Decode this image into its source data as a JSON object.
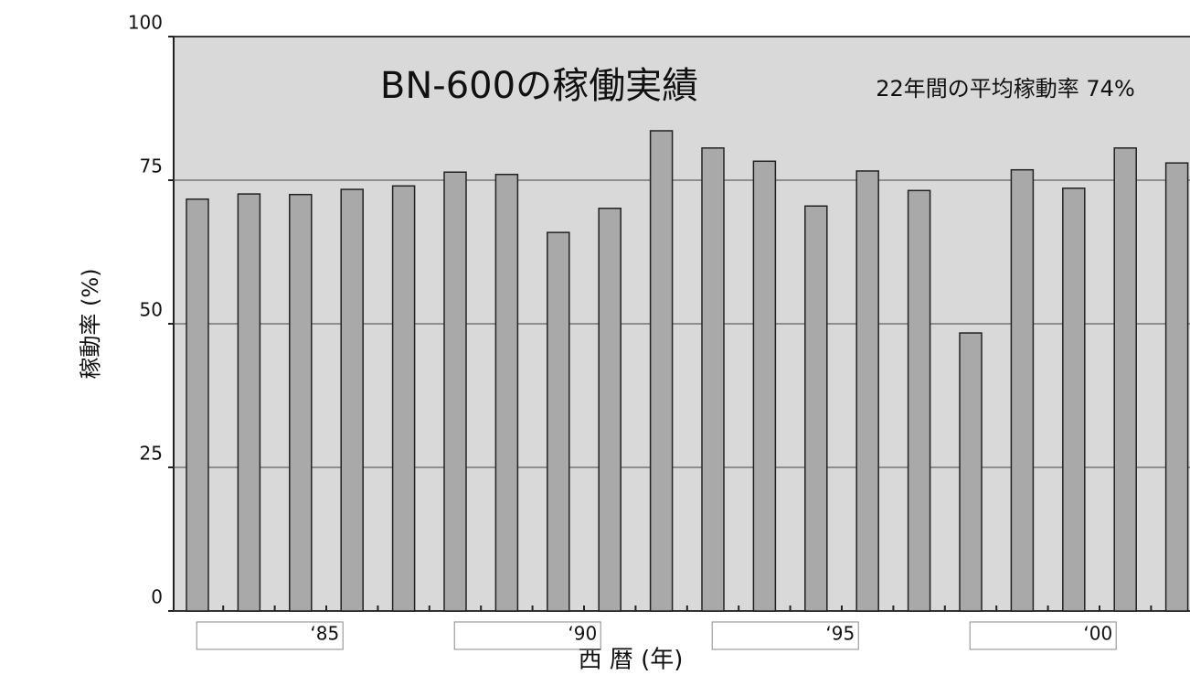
{
  "chart_data": {
    "type": "bar",
    "title": "BN-600の稼働実績",
    "annotation": "22年間の平均稼動率 74%",
    "y_label": "稼動率 (%)",
    "x_label": "西 暦 (年)",
    "categories": [
      null,
      null,
      null,
      "‘85",
      null,
      null,
      null,
      null,
      "‘90",
      null,
      null,
      null,
      null,
      "‘95",
      null,
      null,
      null,
      null,
      "‘00",
      null
    ],
    "values": [
      71.7,
      72.6,
      72.5,
      73.4,
      74.0,
      76.4,
      76.0,
      65.9,
      70.1,
      83.6,
      80.6,
      78.3,
      70.5,
      76.6,
      73.2,
      48.4,
      76.8,
      73.6,
      80.6,
      78.0
    ],
    "color": "#a9a9a9",
    "ylim": [
      0,
      100
    ],
    "yticks": [
      0,
      25,
      50,
      75,
      100
    ],
    "grid": true
  }
}
